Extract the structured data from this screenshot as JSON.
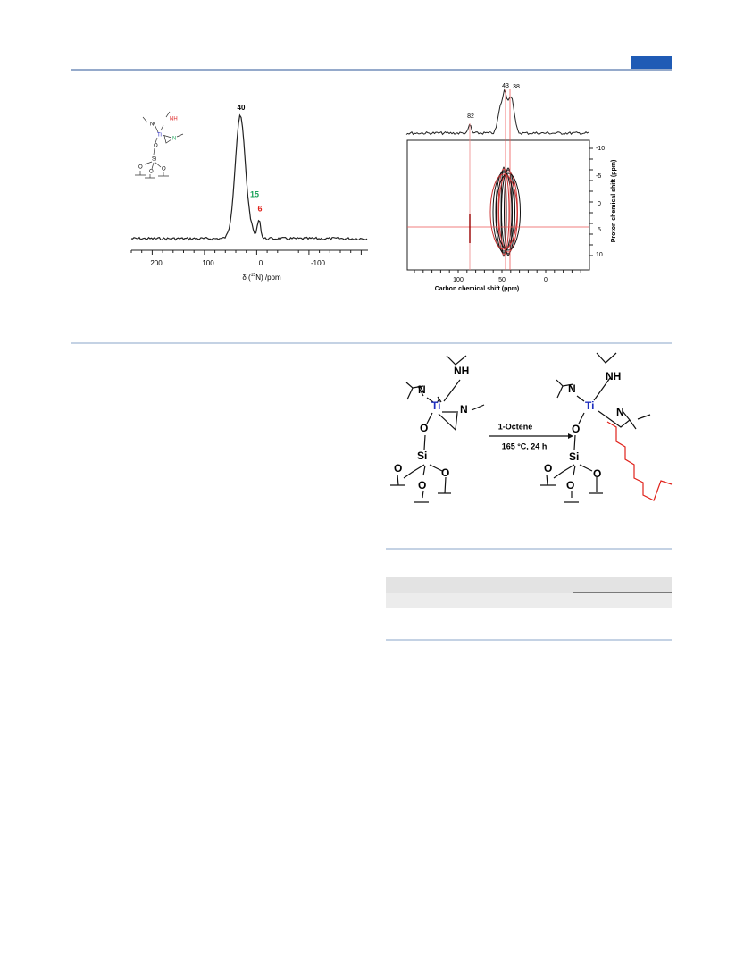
{
  "figure_a": {
    "peaks": [
      "40",
      "15",
      "6"
    ],
    "xticks": [
      "200",
      "100",
      "0",
      "-100"
    ],
    "xlabel": {
      "prefix": "δ (",
      "sup": "15",
      "suffix": "N) /ppm"
    },
    "molecule": [
      "N",
      "NH",
      "Ti",
      "N",
      "O",
      "Si",
      "O",
      "O",
      "O"
    ]
  },
  "figure_b": {
    "peaks": [
      "82",
      "43",
      "38"
    ],
    "yticks": [
      "-10",
      "-5",
      "0",
      "5",
      "10"
    ],
    "ylabel": "Proton chemical shift (ppm)",
    "xticks": [
      "100",
      "50",
      "0"
    ],
    "xlabel": "Carbon chemical shift (ppm)"
  },
  "scheme": {
    "reactant": [
      "NH",
      "N",
      "Ti",
      "N",
      "O",
      "Si",
      "O",
      "O",
      "O"
    ],
    "product": [
      "NH",
      "N",
      "Ti",
      "N",
      "O",
      "Si",
      "O",
      "O",
      "O"
    ],
    "reagent": "1-Octene",
    "conditions": "165 °C, 24 h"
  }
}
